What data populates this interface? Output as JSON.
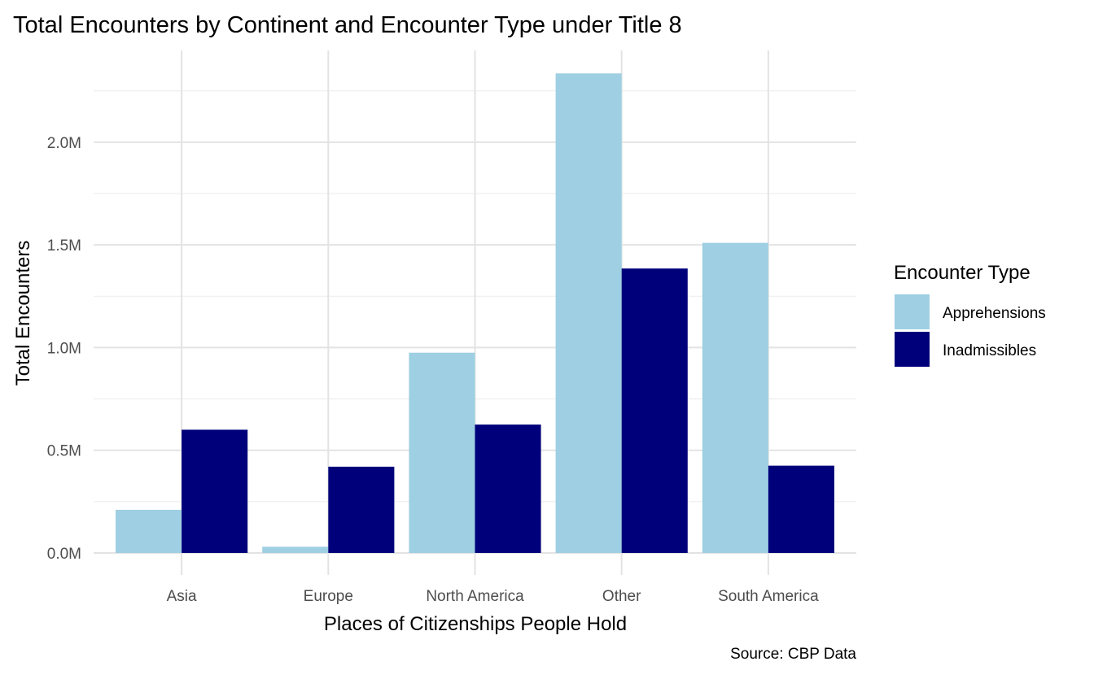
{
  "chart_data": {
    "type": "bar",
    "title": "Total Encounters by Continent and Encounter Type under Title 8",
    "xlabel": "Places of Citizenships People Hold",
    "ylabel": "Total Encounters",
    "caption": "Source: CBP Data",
    "categories": [
      "Asia",
      "Europe",
      "North America",
      "Other",
      "South America"
    ],
    "series": [
      {
        "name": "Apprehensions",
        "color": "#9ECFE2",
        "values": [
          210000,
          30000,
          975000,
          2335000,
          1510000
        ]
      },
      {
        "name": "Inadmissibles",
        "color": "#00007A",
        "values": [
          600000,
          420000,
          625000,
          1385000,
          425000
        ]
      }
    ],
    "yticks": [
      0,
      500000,
      1000000,
      1500000,
      2000000
    ],
    "ytick_labels": [
      "0.0M",
      "0.5M",
      "1.0M",
      "1.5M",
      "2.0M"
    ],
    "ylim": [
      -107000,
      2447000
    ],
    "grid": true,
    "legend": {
      "title": "Encounter Type",
      "position": "right"
    }
  }
}
